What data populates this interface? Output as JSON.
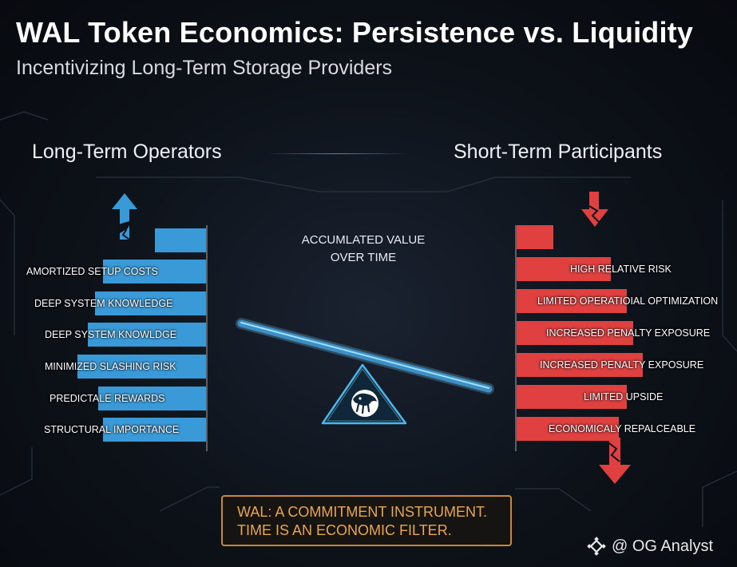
{
  "header": {
    "title": "WAL Token Economics: Persistence vs. Liquidity",
    "subtitle": "Incentivizing Long-Term Storage Providers"
  },
  "left_column": {
    "heading": "Long-Term Operators",
    "color": "#3a9ad8",
    "items": [
      "AMORTIZED SETUP COSTS",
      "DEEP SYSTEM KNOWLEDGE",
      "DEEP SYSTEM KNOWLDGE",
      "MINIMIZED SLASHING RISK",
      "PREDICTALE REWARDS",
      "STRUCTURAL IMPORTANCE"
    ]
  },
  "right_column": {
    "heading": "Short-Term Participants",
    "color": "#e0403f",
    "items": [
      "HIGH RELATIVE RISK",
      "LIMITED OPERATIOIAL OPTIMIZATION",
      "INCREASED PENALTY EXPOSURE",
      "INCREASED PENALTY EXPOSURE",
      "LIMITED UPSIDE",
      "ECONOMICALY REPALCEABLE"
    ]
  },
  "center": {
    "label_line1": "ACCUMLATED VALUE",
    "label_line2": "OVER TIME"
  },
  "footer": {
    "line1": "WAL: A COMMITMENT INSTRUMENT.",
    "line2": "TIME IS AN ECONOMIC FILTER.",
    "accent": "#c98a2e"
  },
  "watermark": {
    "text": "@ OG Analyst",
    "icon": "binance-diamond-icon"
  },
  "icons": {
    "left_arrow": "arrow-up-icon",
    "right_arrow": "arrow-down-icon",
    "fulcrum_logo": "walrus-logo-icon"
  }
}
